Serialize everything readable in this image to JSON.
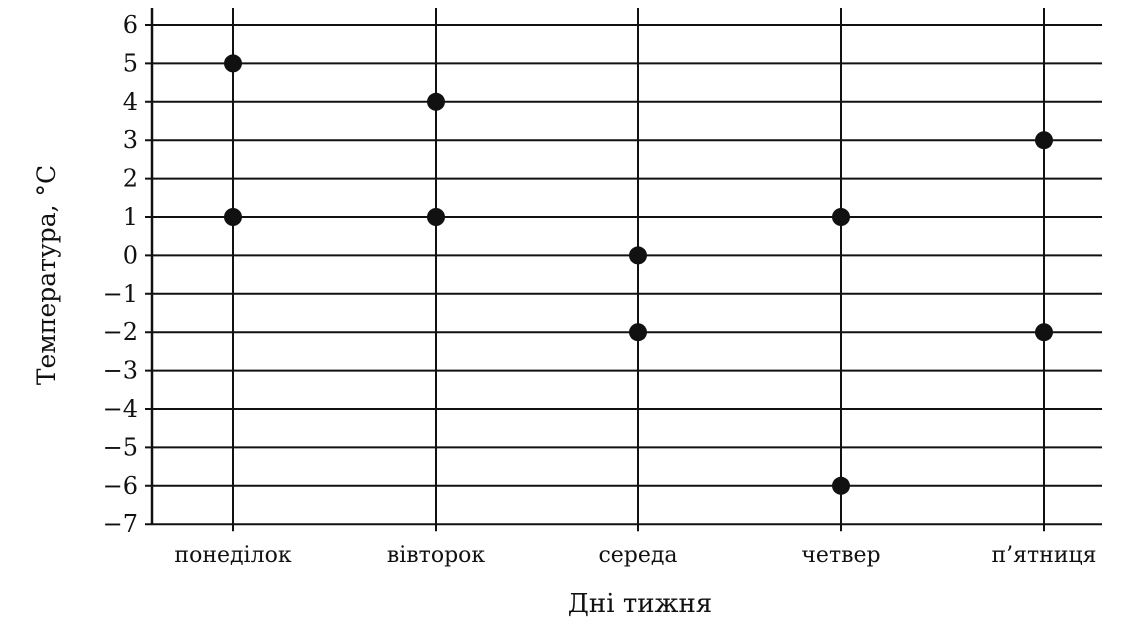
{
  "chart_data": {
    "type": "scatter",
    "xlabel": "Дні тижня",
    "ylabel": "Температура, °C",
    "categories": [
      "понеділок",
      "вівторок",
      "середа",
      "четвер",
      "п’ятниця"
    ],
    "ylim": [
      -7,
      6
    ],
    "yticks": [
      6,
      5,
      4,
      3,
      2,
      1,
      0,
      -1,
      -2,
      -3,
      -4,
      -5,
      -6,
      -7
    ],
    "grid": true,
    "points": [
      {
        "category": "понеділок",
        "values": [
          5,
          1
        ]
      },
      {
        "category": "вівторок",
        "values": [
          4,
          1
        ]
      },
      {
        "category": "середа",
        "values": [
          0,
          -2
        ]
      },
      {
        "category": "четвер",
        "values": [
          1,
          -6
        ]
      },
      {
        "category": "п’ятниця",
        "values": [
          3,
          -2
        ]
      }
    ],
    "colors": {
      "marks": "#111111",
      "grid": "#111111"
    }
  }
}
